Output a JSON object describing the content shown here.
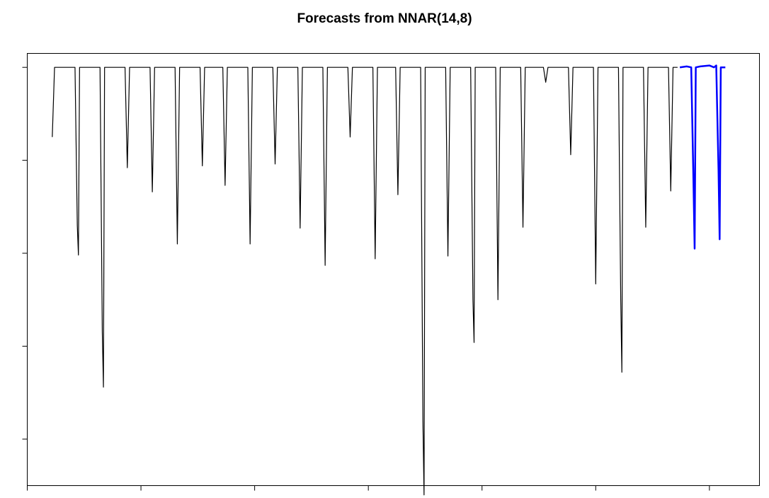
{
  "chart_data": {
    "type": "line",
    "title": "Forecasts from NNAR(14,8)",
    "xlabel": "",
    "ylabel": "",
    "xlim": [
      0,
      322
    ],
    "ylim": [
      -4.5,
      0.15
    ],
    "y_ticks": [
      0,
      -1,
      -2,
      -3,
      -4
    ],
    "x_ticks": [
      0,
      50,
      100,
      150,
      200,
      250,
      300
    ],
    "x_tick_labels": [],
    "y_tick_labels": [],
    "grid": false,
    "series": [
      {
        "role": "observed",
        "color": "#000000",
        "points": [
          [
            11,
            -0.75
          ],
          [
            12,
            0
          ],
          [
            21,
            0
          ],
          [
            22,
            -1.7
          ],
          [
            22.5,
            -2.02
          ],
          [
            23,
            0
          ],
          [
            32,
            0
          ],
          [
            33,
            -2.85
          ],
          [
            33.5,
            -3.44
          ],
          [
            34,
            0
          ],
          [
            43,
            0
          ],
          [
            44,
            -1.08
          ],
          [
            45,
            0
          ],
          [
            54,
            0
          ],
          [
            55,
            -1.34
          ],
          [
            56,
            0
          ],
          [
            65,
            0
          ],
          [
            66,
            -1.9
          ],
          [
            67,
            0
          ],
          [
            76,
            0
          ],
          [
            77,
            -1.06
          ],
          [
            78,
            0
          ],
          [
            86,
            0
          ],
          [
            87,
            -1.27
          ],
          [
            88,
            0
          ],
          [
            97,
            0
          ],
          [
            98,
            -1.9
          ],
          [
            99,
            0
          ],
          [
            108,
            0
          ],
          [
            109,
            -1.04
          ],
          [
            110,
            0
          ],
          [
            119,
            0
          ],
          [
            120,
            -1.73
          ],
          [
            121,
            0
          ],
          [
            130,
            0
          ],
          [
            131,
            -2.13
          ],
          [
            132,
            0
          ],
          [
            141,
            0
          ],
          [
            142,
            -0.75
          ],
          [
            143,
            0
          ],
          [
            152,
            0
          ],
          [
            153,
            -2.06
          ],
          [
            154,
            0
          ],
          [
            162,
            0
          ],
          [
            163,
            -1.37
          ],
          [
            164,
            0
          ],
          [
            173,
            0
          ],
          [
            174,
            -3.8
          ],
          [
            174.5,
            -4.6
          ],
          [
            175,
            0
          ],
          [
            184,
            0
          ],
          [
            185,
            -2.03
          ],
          [
            186,
            0
          ],
          [
            195,
            0
          ],
          [
            196,
            -2.5
          ],
          [
            196.5,
            -2.96
          ],
          [
            197,
            0
          ],
          [
            206,
            0
          ],
          [
            207,
            -2.5
          ],
          [
            208,
            0
          ],
          [
            217,
            0
          ],
          [
            218,
            -1.72
          ],
          [
            219,
            0
          ],
          [
            227,
            0
          ],
          [
            228,
            -0.16
          ],
          [
            229,
            0
          ],
          [
            238,
            0
          ],
          [
            239,
            -0.94
          ],
          [
            240,
            0
          ],
          [
            249,
            0
          ],
          [
            250,
            -2.33
          ],
          [
            251,
            0
          ],
          [
            260,
            0
          ],
          [
            261,
            -2.5
          ],
          [
            261.5,
            -3.28
          ],
          [
            262,
            0
          ],
          [
            271,
            0
          ],
          [
            272,
            -1.72
          ],
          [
            273,
            0
          ],
          [
            282,
            0
          ],
          [
            283,
            -1.33
          ],
          [
            284,
            0
          ],
          [
            286,
            0
          ]
        ]
      },
      {
        "role": "forecast",
        "color": "#0000ff",
        "points": [
          [
            287,
            0
          ],
          [
            290,
            0.01
          ],
          [
            292,
            0
          ],
          [
            293,
            -1.25
          ],
          [
            293.5,
            -1.95
          ],
          [
            294,
            0
          ],
          [
            296,
            0.01
          ],
          [
            300,
            0.02
          ],
          [
            302,
            0
          ],
          [
            303,
            0.02
          ],
          [
            304,
            -1.1
          ],
          [
            304.5,
            -1.85
          ],
          [
            305,
            0
          ],
          [
            307,
            0
          ]
        ]
      }
    ]
  }
}
